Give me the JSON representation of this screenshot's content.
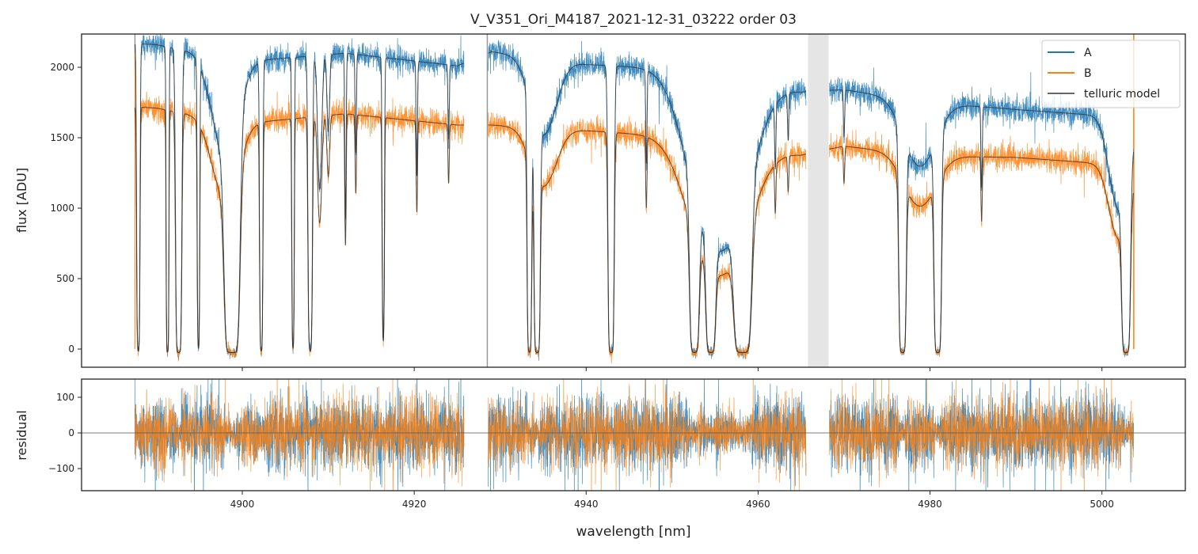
{
  "chart_data": [
    {
      "type": "line",
      "title": "V_V351_Ori_M4187_2021-12-31_03222  order 03",
      "xlabel": "",
      "ylabel": "flux [ADU]",
      "xlim": [
        4881.3,
        5009.7
      ],
      "ylim": [
        -129,
        2236
      ],
      "xticks": [
        4900,
        4920,
        4940,
        4960,
        4980,
        5000
      ],
      "yticks": [
        0,
        500,
        1000,
        1500,
        2000
      ],
      "legend": {
        "placement": "top-right",
        "entries": [
          "A",
          "B",
          "telluric model"
        ]
      },
      "colors": {
        "A": "#1f77b4",
        "B": "#ff7f0e",
        "model": "#333333"
      },
      "data_segments": [
        [
          4887.5,
          4925.8
        ],
        [
          4928.6,
          4965.6
        ],
        [
          4968.3,
          5003.7
        ]
      ],
      "continuum_A": [
        [
          4887.5,
          2170
        ],
        [
          4890,
          2160
        ],
        [
          4900,
          2040
        ],
        [
          4912,
          2100
        ],
        [
          4925,
          2010
        ],
        [
          4929,
          2110
        ],
        [
          4940,
          2020
        ],
        [
          4950,
          1990
        ],
        [
          4965,
          1830
        ],
        [
          4970,
          1840
        ],
        [
          4980,
          1750
        ],
        [
          4990,
          1700
        ],
        [
          5003.7,
          1640
        ]
      ],
      "continuum_B": [
        [
          4887.5,
          1720
        ],
        [
          4890,
          1710
        ],
        [
          4900,
          1600
        ],
        [
          4912,
          1670
        ],
        [
          4925,
          1590
        ],
        [
          4929,
          1590
        ],
        [
          4940,
          1550
        ],
        [
          4950,
          1510
        ],
        [
          4965,
          1380
        ],
        [
          4970,
          1440
        ],
        [
          4980,
          1370
        ],
        [
          4990,
          1360
        ],
        [
          5003.7,
          1300
        ]
      ],
      "lines_center_tau_width": [
        [
          4887.9,
          5,
          0.15
        ],
        [
          4891.3,
          6,
          0.12
        ],
        [
          4892.6,
          8,
          0.25
        ],
        [
          4894.9,
          4,
          0.12
        ],
        [
          4898.8,
          10,
          0.6
        ],
        [
          4898,
          0.4,
          2
        ],
        [
          4902.2,
          5,
          0.15
        ],
        [
          4905.9,
          4,
          0.12
        ],
        [
          4907.9,
          5,
          0.2
        ],
        [
          4909.0,
          0.6,
          0.3
        ],
        [
          4910.0,
          0.3,
          0.2
        ],
        [
          4912.0,
          0.8,
          0.1
        ],
        [
          4913.2,
          0.4,
          0.1
        ],
        [
          4916.4,
          3,
          0.12
        ],
        [
          4920.3,
          0.5,
          0.1
        ],
        [
          4924.0,
          0.3,
          0.1
        ],
        [
          4933.4,
          6,
          0.2
        ],
        [
          4934.3,
          8,
          0.25
        ],
        [
          4935,
          0.3,
          2
        ],
        [
          4942.9,
          8,
          0.25
        ],
        [
          4947.0,
          0.4,
          0.1
        ],
        [
          4952.6,
          7,
          0.4
        ],
        [
          4954.5,
          7,
          0.4
        ],
        [
          4958.2,
          9,
          0.7
        ],
        [
          4955.5,
          1.0,
          4.0
        ],
        [
          4962.0,
          0.3,
          0.1
        ],
        [
          4963.5,
          0.2,
          0.1
        ],
        [
          4970.0,
          0.2,
          0.1
        ],
        [
          4976.8,
          8,
          0.3
        ],
        [
          4980.9,
          8,
          0.3
        ],
        [
          4978.8,
          0.3,
          2.5
        ],
        [
          4986.0,
          0.4,
          0.1
        ],
        [
          5002.8,
          8,
          0.35
        ],
        [
          5002,
          0.5,
          1.5
        ]
      ],
      "noise_sigma": 45
    },
    {
      "type": "line",
      "xlabel": "wavelength [nm]",
      "ylabel": "residual",
      "xlim": [
        4881.3,
        5009.7
      ],
      "ylim": [
        -162,
        151
      ],
      "xticks": [
        4900,
        4920,
        4940,
        4960,
        4980,
        5000
      ],
      "yticks": [
        -100,
        0,
        100
      ],
      "series": [
        "A",
        "B"
      ]
    }
  ]
}
